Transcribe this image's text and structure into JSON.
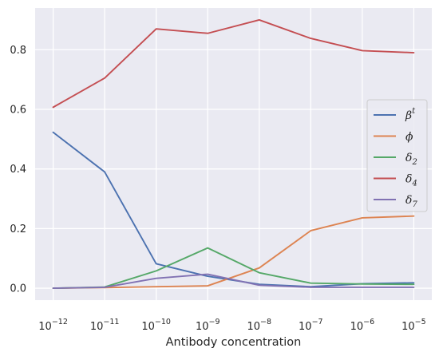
{
  "chart_data": {
    "type": "line",
    "x_exponents": [
      -12,
      -11,
      -10,
      -9,
      -8,
      -7,
      -6,
      -5
    ],
    "x_tick_labels": [
      "10",
      "10",
      "10",
      "10",
      "10",
      "10",
      "10",
      "10"
    ],
    "x_tick_exponents": [
      "−12",
      "−11",
      "−10",
      "−9",
      "−8",
      "−7",
      "−6",
      "−5"
    ],
    "xscale": "log",
    "xlabel": "Antibody concentration",
    "ylabel": "",
    "ylim": [
      -0.04,
      0.94
    ],
    "y_ticks": [
      0.0,
      0.2,
      0.4,
      0.6,
      0.8
    ],
    "y_tick_labels": [
      "0.0",
      "0.2",
      "0.4",
      "0.6",
      "0.8"
    ],
    "grid": true,
    "legend_position": "right",
    "series": [
      {
        "name": "β",
        "sup": "t",
        "color": "#4c72b0",
        "values": [
          0.523,
          0.39,
          0.082,
          0.04,
          0.013,
          0.005,
          0.015,
          0.018
        ]
      },
      {
        "name": "ϕ",
        "color": "#dd8452",
        "values": [
          0.0,
          0.002,
          0.005,
          0.008,
          0.068,
          0.193,
          0.236,
          0.242
        ]
      },
      {
        "name": "δ",
        "sub": "2",
        "color": "#55a868",
        "values": [
          0.0,
          0.004,
          0.058,
          0.135,
          0.052,
          0.017,
          0.014,
          0.013
        ]
      },
      {
        "name": "δ",
        "sub": "4",
        "color": "#c44e52",
        "values": [
          0.607,
          0.705,
          0.87,
          0.855,
          0.9,
          0.838,
          0.797,
          0.79
        ]
      },
      {
        "name": "δ",
        "sub": "7",
        "color": "#8172b3",
        "values": [
          0.0,
          0.003,
          0.033,
          0.047,
          0.01,
          0.003,
          0.003,
          0.003
        ]
      }
    ]
  }
}
